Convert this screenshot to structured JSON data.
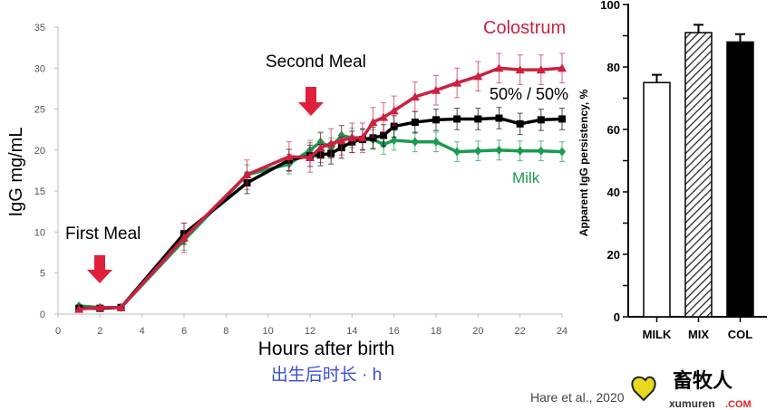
{
  "chart_data": [
    {
      "type": "line",
      "ylabel": "IgG mg/mL",
      "xlabel": "Hours after birth",
      "xlabel_cn": "出生后时长 · h",
      "xlim": [
        0,
        24
      ],
      "ylim": [
        0,
        35
      ],
      "xticks": [
        "0",
        "2",
        "4",
        "6",
        "8",
        "10",
        "12",
        "14",
        "16",
        "18",
        "20",
        "22",
        "24"
      ],
      "yticks": [
        "0",
        "5",
        "10",
        "15",
        "20",
        "25",
        "30",
        "35"
      ],
      "x": [
        1,
        2,
        3,
        6,
        9,
        11,
        12,
        12.5,
        13,
        13.5,
        14,
        14.5,
        15,
        15.5,
        16,
        17,
        18,
        19,
        20,
        21,
        22,
        23,
        24
      ],
      "series": [
        {
          "name": "Milk",
          "color": "#1a9a50",
          "marker": "diamond",
          "values": [
            1,
            0.8,
            0.8,
            9,
            17,
            18.3,
            20,
            21,
            20.3,
            21.8,
            21.5,
            21.3,
            21.3,
            20.7,
            21.2,
            21,
            21,
            19.8,
            19.9,
            20,
            19.9,
            19.9,
            19.8
          ],
          "error": 1.2
        },
        {
          "name": "50% / 50%",
          "color": "#000000",
          "marker": "square",
          "values": [
            0.7,
            0.7,
            0.8,
            9.8,
            16,
            18.8,
            19.3,
            19.4,
            19.6,
            20.3,
            21,
            21.3,
            21.5,
            21.8,
            22.9,
            23.4,
            23.7,
            23.8,
            23.8,
            23.9,
            23.2,
            23.7,
            23.8
          ],
          "error": 1.3
        },
        {
          "name": "Colostrum",
          "color": "#cc2040",
          "marker": "triangle",
          "values": [
            0.6,
            0.8,
            0.8,
            9.3,
            17,
            19.2,
            19.1,
            20.3,
            20.8,
            21.2,
            21.5,
            21.5,
            23.4,
            24,
            24.8,
            26.5,
            27.3,
            28.2,
            29,
            30,
            29.8,
            29.8,
            30
          ],
          "error": 1.8
        }
      ],
      "annotations": [
        "First Meal",
        "Second Meal"
      ]
    },
    {
      "type": "bar",
      "ylabel": "Apparent IgG persistency, %",
      "ylim": [
        0,
        100
      ],
      "yticks": [
        "0",
        "20",
        "40",
        "60",
        "80",
        "100"
      ],
      "categories": [
        "MILK",
        "MIX",
        "COL"
      ],
      "values": [
        75,
        91,
        88
      ],
      "errors": [
        2.5,
        2.5,
        2.5
      ]
    }
  ],
  "citation": "Hare et al., 2020",
  "watermark": {
    "cn": "畜牧人",
    "en": "xumuren",
    "com": ".COM"
  }
}
